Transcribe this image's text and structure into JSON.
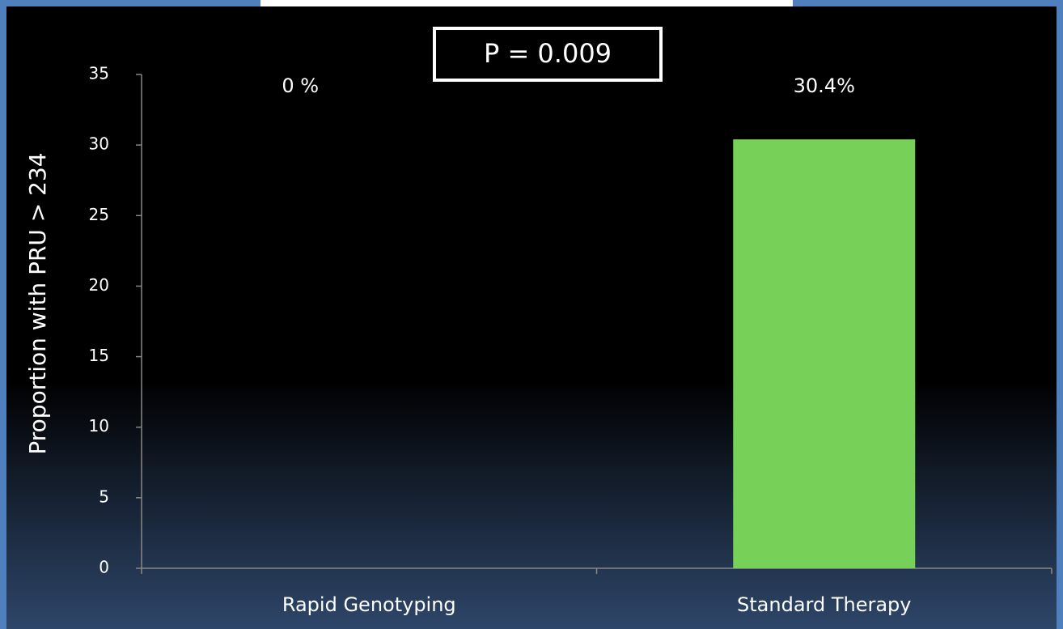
{
  "chart_data": {
    "type": "bar",
    "annotation": "P = 0.009",
    "y_label": "Proportion with PRU > 234",
    "categories": [
      "Rapid Genotyping",
      "Standard Therapy"
    ],
    "values": [
      0,
      30.4
    ],
    "value_labels": [
      "0 %",
      "30.4%"
    ],
    "color": "#77d158",
    "ylim": [
      0,
      35
    ],
    "yticks": [
      0,
      5,
      10,
      15,
      20,
      25,
      30,
      35
    ]
  }
}
